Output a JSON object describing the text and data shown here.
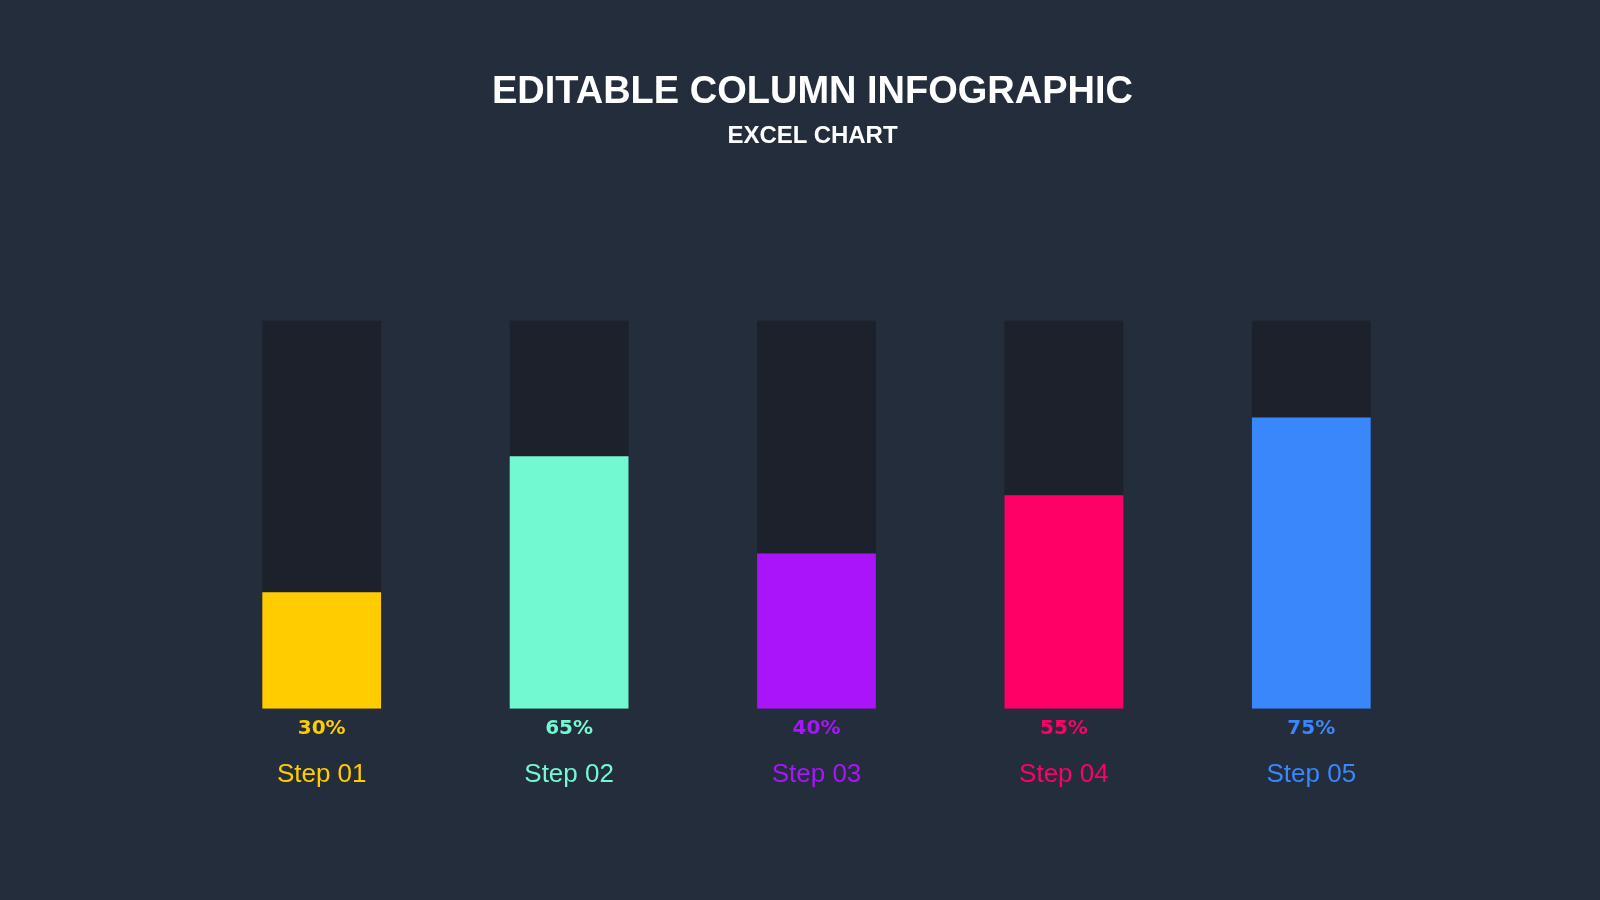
{
  "chart_data": {
    "type": "bar",
    "title": "EDITABLE COLUMN INFOGRAPHIC",
    "subtitle": "EXCEL CHART",
    "categories": [
      "Step 01",
      "Step 02",
      "Step 03",
      "Step 04",
      "Step 05"
    ],
    "stacked": true,
    "ylim": [
      0,
      100
    ],
    "tick_labels": "x",
    "grid": false,
    "legend": false,
    "series": [
      {
        "colors": [
          "#ffcc00",
          "#73f9d1",
          "#aa14fb",
          "#ff0066",
          "#3a86fb"
        ],
        "values": [
          30,
          65,
          40,
          55,
          75
        ],
        "value_labels": [
          "30%",
          "65%",
          "40%",
          "55%",
          "75%"
        ]
      },
      {
        "color": "#1c212b",
        "values": [
          70,
          35,
          60,
          45,
          25
        ]
      }
    ]
  }
}
